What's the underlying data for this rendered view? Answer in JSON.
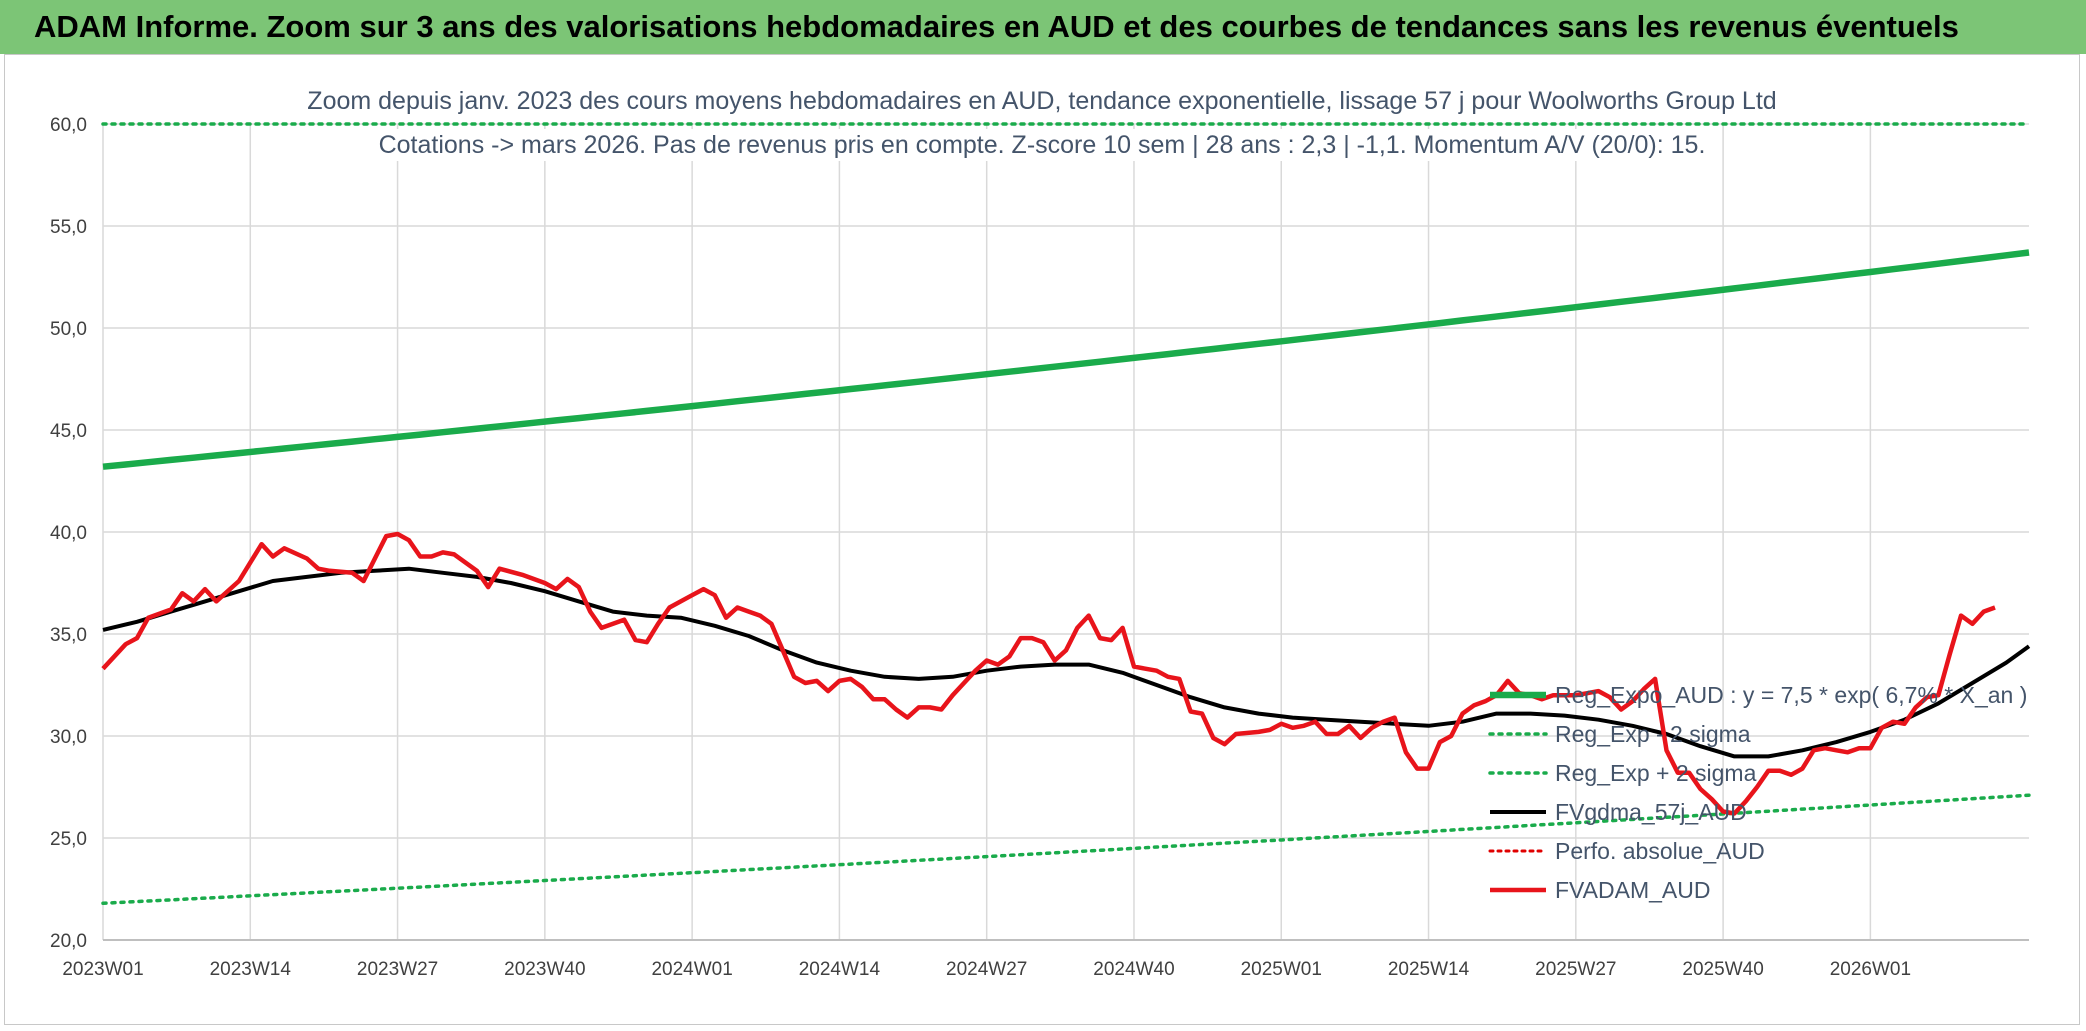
{
  "banner": {
    "title": "ADAM Informe. Zoom sur 3 ans des valorisations hebdomadaires en AUD et des courbes de tendances sans les revenus éventuels"
  },
  "colors": {
    "banner": "#7cc576",
    "reg_expo": "#1aab4b",
    "sigma": "#1aab4b",
    "fvgdma": "#000000",
    "perfo": "#e00000",
    "fvadam": "#e8141b"
  },
  "chart_data": {
    "type": "line",
    "title": "Zoom depuis janv. 2023 des cours moyens hebdomadaires en AUD, tendance exponentielle, lissage 57 j pour Woolworths Group Ltd",
    "subtitle": "Cotations -> mars 2026. Pas de revenus pris en compte. Z-score 10 sem | 28 ans : 2,3 | -1,1. Momentum A/V (20/0): 15.",
    "xlabel": "",
    "ylabel": "",
    "ylim": [
      20,
      60
    ],
    "yticks": [
      "20,0",
      "25,0",
      "30,0",
      "35,0",
      "40,0",
      "45,0",
      "50,0",
      "55,0",
      "60,0"
    ],
    "xticks": [
      "2023W01",
      "2023W14",
      "2023W27",
      "2023W40",
      "2024W01",
      "2024W14",
      "2024W27",
      "2024W40",
      "2025W01",
      "2025W14",
      "2025W27",
      "2025W40",
      "2026W01"
    ],
    "grid": true,
    "legend_position": "bottom-right",
    "series": [
      {
        "name": "Reg_Expo_AUD : y = 7,5 * exp( 6,7% * X_an )",
        "style": "thick-solid",
        "start": 43.2,
        "end": 53.7
      },
      {
        "name": "Reg_Exp - 2 sigma",
        "style": "dotted",
        "start": 21.8,
        "end": 27.1
      },
      {
        "name": "Reg_Exp + 2 sigma",
        "style": "dotted",
        "start": 60.0,
        "end": 60.0
      },
      {
        "name": "FVgdma_57j_AUD",
        "style": "solid",
        "values": [
          [
            0,
            35.2
          ],
          [
            3,
            35.6
          ],
          [
            6,
            36.1
          ],
          [
            9,
            36.6
          ],
          [
            12,
            37.1
          ],
          [
            15,
            37.6
          ],
          [
            18,
            37.8
          ],
          [
            21,
            38.0
          ],
          [
            24,
            38.1
          ],
          [
            27,
            38.2
          ],
          [
            30,
            38.0
          ],
          [
            33,
            37.8
          ],
          [
            36,
            37.5
          ],
          [
            39,
            37.1
          ],
          [
            42,
            36.6
          ],
          [
            45,
            36.1
          ],
          [
            48,
            35.9
          ],
          [
            51,
            35.8
          ],
          [
            54,
            35.4
          ],
          [
            57,
            34.9
          ],
          [
            60,
            34.2
          ],
          [
            63,
            33.6
          ],
          [
            66,
            33.2
          ],
          [
            69,
            32.9
          ],
          [
            72,
            32.8
          ],
          [
            75,
            32.9
          ],
          [
            78,
            33.2
          ],
          [
            81,
            33.4
          ],
          [
            84,
            33.5
          ],
          [
            87,
            33.5
          ],
          [
            90,
            33.1
          ],
          [
            93,
            32.5
          ],
          [
            96,
            31.9
          ],
          [
            99,
            31.4
          ],
          [
            102,
            31.1
          ],
          [
            105,
            30.9
          ],
          [
            108,
            30.8
          ],
          [
            111,
            30.7
          ],
          [
            114,
            30.6
          ],
          [
            117,
            30.5
          ],
          [
            120,
            30.7
          ],
          [
            123,
            31.1
          ],
          [
            126,
            31.1
          ],
          [
            129,
            31.0
          ],
          [
            132,
            30.8
          ],
          [
            135,
            30.5
          ],
          [
            138,
            30.1
          ],
          [
            141,
            29.5
          ],
          [
            144,
            29.0
          ],
          [
            147,
            29.0
          ],
          [
            150,
            29.3
          ],
          [
            153,
            29.7
          ],
          [
            156,
            30.2
          ],
          [
            159,
            30.8
          ],
          [
            162,
            31.6
          ],
          [
            165,
            32.6
          ],
          [
            168,
            33.6
          ],
          [
            170,
            34.4
          ]
        ]
      },
      {
        "name": "Perfo. absolue_AUD",
        "style": "dotted",
        "values": []
      },
      {
        "name": "FVADAM_AUD",
        "style": "thick-solid",
        "values": [
          [
            0,
            33.3
          ],
          [
            2,
            34.5
          ],
          [
            3,
            34.8
          ],
          [
            4,
            35.8
          ],
          [
            6,
            36.2
          ],
          [
            7,
            37.0
          ],
          [
            8,
            36.6
          ],
          [
            9,
            37.2
          ],
          [
            10,
            36.6
          ],
          [
            12,
            37.6
          ],
          [
            13,
            38.5
          ],
          [
            14,
            39.4
          ],
          [
            15,
            38.8
          ],
          [
            16,
            39.2
          ],
          [
            18,
            38.7
          ],
          [
            19,
            38.2
          ],
          [
            20,
            38.1
          ],
          [
            22,
            38.0
          ],
          [
            23,
            37.6
          ],
          [
            24,
            38.7
          ],
          [
            25,
            39.8
          ],
          [
            26,
            39.9
          ],
          [
            27,
            39.6
          ],
          [
            28,
            38.8
          ],
          [
            29,
            38.8
          ],
          [
            30,
            39.0
          ],
          [
            31,
            38.9
          ],
          [
            33,
            38.1
          ],
          [
            34,
            37.3
          ],
          [
            35,
            38.2
          ],
          [
            37,
            37.9
          ],
          [
            39,
            37.5
          ],
          [
            40,
            37.2
          ],
          [
            41,
            37.7
          ],
          [
            42,
            37.3
          ],
          [
            43,
            36.1
          ],
          [
            44,
            35.3
          ],
          [
            46,
            35.7
          ],
          [
            47,
            34.7
          ],
          [
            48,
            34.6
          ],
          [
            49,
            35.5
          ],
          [
            50,
            36.3
          ],
          [
            52,
            36.9
          ],
          [
            53,
            37.2
          ],
          [
            54,
            36.9
          ],
          [
            55,
            35.8
          ],
          [
            56,
            36.3
          ],
          [
            57,
            36.1
          ],
          [
            58,
            35.9
          ],
          [
            59,
            35.5
          ],
          [
            60,
            34.2
          ],
          [
            61,
            32.9
          ],
          [
            62,
            32.6
          ],
          [
            63,
            32.7
          ],
          [
            64,
            32.2
          ],
          [
            65,
            32.7
          ],
          [
            66,
            32.8
          ],
          [
            67,
            32.4
          ],
          [
            68,
            31.8
          ],
          [
            69,
            31.8
          ],
          [
            70,
            31.3
          ],
          [
            71,
            30.9
          ],
          [
            72,
            31.4
          ],
          [
            73,
            31.4
          ],
          [
            74,
            31.3
          ],
          [
            75,
            32.0
          ],
          [
            76,
            32.6
          ],
          [
            77,
            33.2
          ],
          [
            78,
            33.7
          ],
          [
            79,
            33.5
          ],
          [
            80,
            33.9
          ],
          [
            81,
            34.8
          ],
          [
            82,
            34.8
          ],
          [
            83,
            34.6
          ],
          [
            84,
            33.7
          ],
          [
            85,
            34.2
          ],
          [
            86,
            35.3
          ],
          [
            87,
            35.9
          ],
          [
            88,
            34.8
          ],
          [
            89,
            34.7
          ],
          [
            90,
            35.3
          ],
          [
            91,
            33.4
          ],
          [
            92,
            33.3
          ],
          [
            93,
            33.2
          ],
          [
            94,
            32.9
          ],
          [
            95,
            32.8
          ],
          [
            96,
            31.2
          ],
          [
            97,
            31.1
          ],
          [
            98,
            29.9
          ],
          [
            99,
            29.6
          ],
          [
            100,
            30.1
          ],
          [
            102,
            30.2
          ],
          [
            103,
            30.3
          ],
          [
            104,
            30.6
          ],
          [
            105,
            30.4
          ],
          [
            106,
            30.5
          ],
          [
            107,
            30.7
          ],
          [
            108,
            30.1
          ],
          [
            109,
            30.1
          ],
          [
            110,
            30.5
          ],
          [
            111,
            29.9
          ],
          [
            112,
            30.4
          ],
          [
            113,
            30.7
          ],
          [
            114,
            30.9
          ],
          [
            115,
            29.2
          ],
          [
            116,
            28.4
          ],
          [
            117,
            28.4
          ],
          [
            118,
            29.7
          ],
          [
            119,
            30.0
          ],
          [
            120,
            31.1
          ],
          [
            121,
            31.5
          ],
          [
            122,
            31.7
          ],
          [
            123,
            32.0
          ],
          [
            124,
            32.7
          ],
          [
            125,
            32.1
          ],
          [
            126,
            32.0
          ],
          [
            127,
            31.8
          ],
          [
            128,
            32.0
          ],
          [
            130,
            32.0
          ],
          [
            131,
            32.1
          ],
          [
            132,
            32.2
          ],
          [
            133,
            31.9
          ],
          [
            134,
            31.3
          ],
          [
            135,
            31.7
          ],
          [
            136,
            32.3
          ],
          [
            137,
            32.8
          ],
          [
            138,
            29.3
          ],
          [
            139,
            28.2
          ],
          [
            140,
            28.2
          ],
          [
            141,
            27.4
          ],
          [
            142,
            26.9
          ],
          [
            143,
            26.3
          ],
          [
            144,
            26.2
          ],
          [
            145,
            26.8
          ],
          [
            146,
            27.5
          ],
          [
            147,
            28.3
          ],
          [
            148,
            28.3
          ],
          [
            149,
            28.1
          ],
          [
            150,
            28.4
          ],
          [
            151,
            29.3
          ],
          [
            152,
            29.4
          ],
          [
            153,
            29.3
          ],
          [
            154,
            29.2
          ],
          [
            155,
            29.4
          ],
          [
            156,
            29.4
          ],
          [
            157,
            30.4
          ],
          [
            158,
            30.7
          ],
          [
            159,
            30.6
          ],
          [
            160,
            31.4
          ],
          [
            161,
            31.9
          ],
          [
            162,
            32.0
          ],
          [
            163,
            34.0
          ],
          [
            164,
            35.9
          ],
          [
            165,
            35.5
          ],
          [
            166,
            36.1
          ],
          [
            167,
            36.3
          ]
        ]
      }
    ]
  }
}
